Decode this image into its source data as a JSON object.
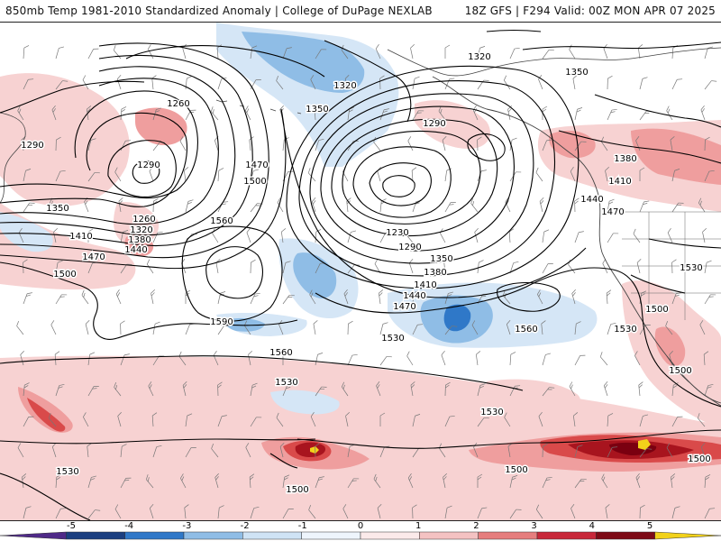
{
  "header": {
    "title": "850mb Temp 1981-2010 Standardized Anomaly | College of DuPage NEXLAB",
    "run_info": "18Z GFS | F294 Valid: 00Z MON APR 07 2025"
  },
  "colors": {
    "neg5": "#6f2fa8",
    "neg4": "#1e3a7a",
    "neg3": "#2f78c8",
    "neg2": "#8fbde6",
    "neg1": "#d5e6f6",
    "pos1": "#f7d2d2",
    "pos2": "#ef9e9e",
    "pos3": "#d94a4a",
    "pos4": "#a8141e",
    "pos5": "#7a0010",
    "pos6": "#f2d21a",
    "contour": "#000000",
    "coast": "#444444",
    "barb": "#777777"
  },
  "colorbar": {
    "ticks": [
      "-5",
      "-4",
      "-3",
      "-2",
      "-1",
      "0",
      "1",
      "2",
      "3",
      "4",
      "5"
    ]
  },
  "contour_labels": [
    "1260",
    "1290",
    "1320",
    "1350",
    "1380",
    "1410",
    "1440",
    "1470",
    "1500",
    "1530",
    "1560",
    "1590",
    "1230"
  ],
  "labels": [
    {
      "t": "1320"
    },
    {
      "t": "1350"
    },
    {
      "t": "1320"
    },
    {
      "t": "1350"
    },
    {
      "t": "1260"
    },
    {
      "t": "1290"
    },
    {
      "t": "1290"
    },
    {
      "t": "1290"
    },
    {
      "t": "1470"
    },
    {
      "t": "1500"
    },
    {
      "t": "1350"
    },
    {
      "t": "1260"
    },
    {
      "t": "1320"
    },
    {
      "t": "1380"
    },
    {
      "t": "1410"
    },
    {
      "t": "1440"
    },
    {
      "t": "1470"
    },
    {
      "t": "1500"
    },
    {
      "t": "1560"
    },
    {
      "t": "1590"
    },
    {
      "t": "1230"
    },
    {
      "t": "1290"
    },
    {
      "t": "1350"
    },
    {
      "t": "1380"
    },
    {
      "t": "1410"
    },
    {
      "t": "1440"
    },
    {
      "t": "1470"
    },
    {
      "t": "1530"
    },
    {
      "t": "1560"
    },
    {
      "t": "1380"
    },
    {
      "t": "1410"
    },
    {
      "t": "1440"
    },
    {
      "t": "1470"
    },
    {
      "t": "1530"
    },
    {
      "t": "1500"
    },
    {
      "t": "1530"
    },
    {
      "t": "1500"
    },
    {
      "t": "1560"
    },
    {
      "t": "1530"
    },
    {
      "t": "1530"
    },
    {
      "t": "1530"
    },
    {
      "t": "1500"
    },
    {
      "t": "1500"
    },
    {
      "t": "1500"
    }
  ]
}
